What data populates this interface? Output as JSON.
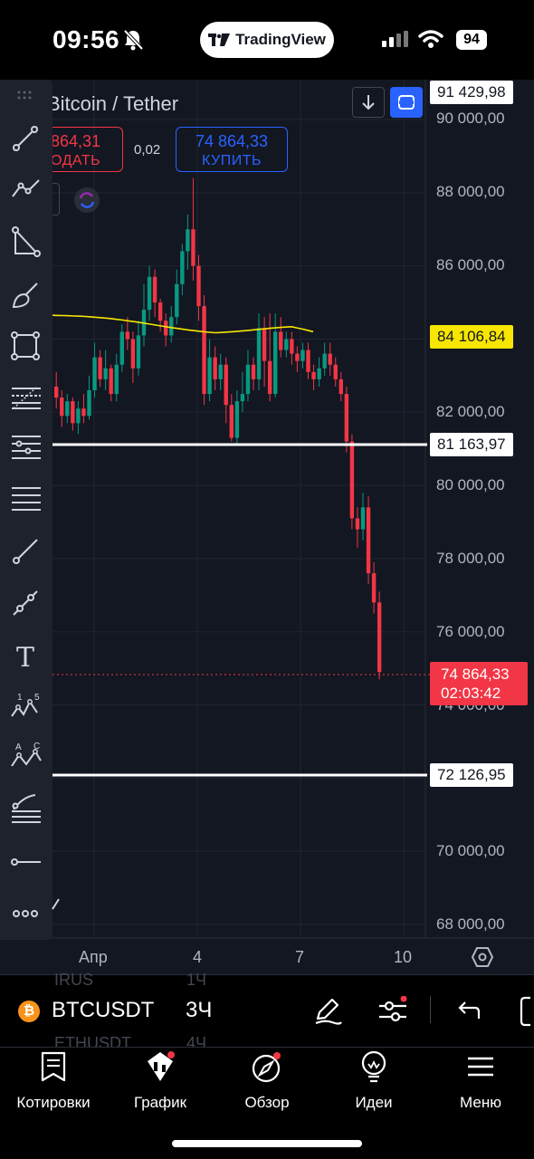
{
  "status_bar": {
    "time": "09:56",
    "app_pill": "TradingView",
    "battery": "94"
  },
  "chart": {
    "symbol_title": "Bitcoin / Tether",
    "sell_price": "864,31",
    "sell_label": "ОДАТЬ",
    "spread": "0,02",
    "buy_price": "74 864,33",
    "buy_label": "КУПИТЬ",
    "price_axis": [
      "90 000,00",
      "88 000,00",
      "86 000,00",
      "82 000,00",
      "80 000,00",
      "78 000,00",
      "76 000,00",
      "74 000,00",
      "70 000,00",
      "68 000,00"
    ],
    "tags": {
      "top": "91 429,98",
      "ma": "84 106,84",
      "level_upper": "81 163,97",
      "level_lower": "72 126,95",
      "current_price": "74 864,33",
      "countdown": "02:03:42"
    },
    "time_axis": [
      "Апр",
      "4",
      "7",
      "10"
    ],
    "colors": {
      "up": "#089981",
      "down": "#f23645",
      "ma": "#f7e600",
      "background": "#131722"
    }
  },
  "toolbar": {
    "tool_names": [
      "trend-line",
      "polyline",
      "triangle",
      "brush",
      "rectangle",
      "fib-retracement",
      "fib-fan",
      "parallel-channel",
      "ray",
      "extended-line",
      "text",
      "elliott-wave",
      "abcd-pattern",
      "gann",
      "horizontal-ray",
      "more"
    ],
    "wave_labels": [
      "1",
      "5"
    ],
    "abcd_labels": [
      "A",
      "C"
    ],
    "text_tool": "T"
  },
  "symbol_bar": {
    "coin_glyph": "₿",
    "symbol": "BTCUSDT",
    "timeframe": "3Ч",
    "ghost_above": "IRUS",
    "ghost_above_tf": "1Ч",
    "ghost_below": "ETHUSDT",
    "ghost_below_tf": "4Ч"
  },
  "bottom_nav": {
    "items": [
      {
        "label": "Котировки",
        "icon": "quotes-icon"
      },
      {
        "label": "График",
        "icon": "chart-icon"
      },
      {
        "label": "Обзор",
        "icon": "compass-icon"
      },
      {
        "label": "Идеи",
        "icon": "ideas-icon"
      },
      {
        "label": "Меню",
        "icon": "menu-icon"
      }
    ]
  }
}
